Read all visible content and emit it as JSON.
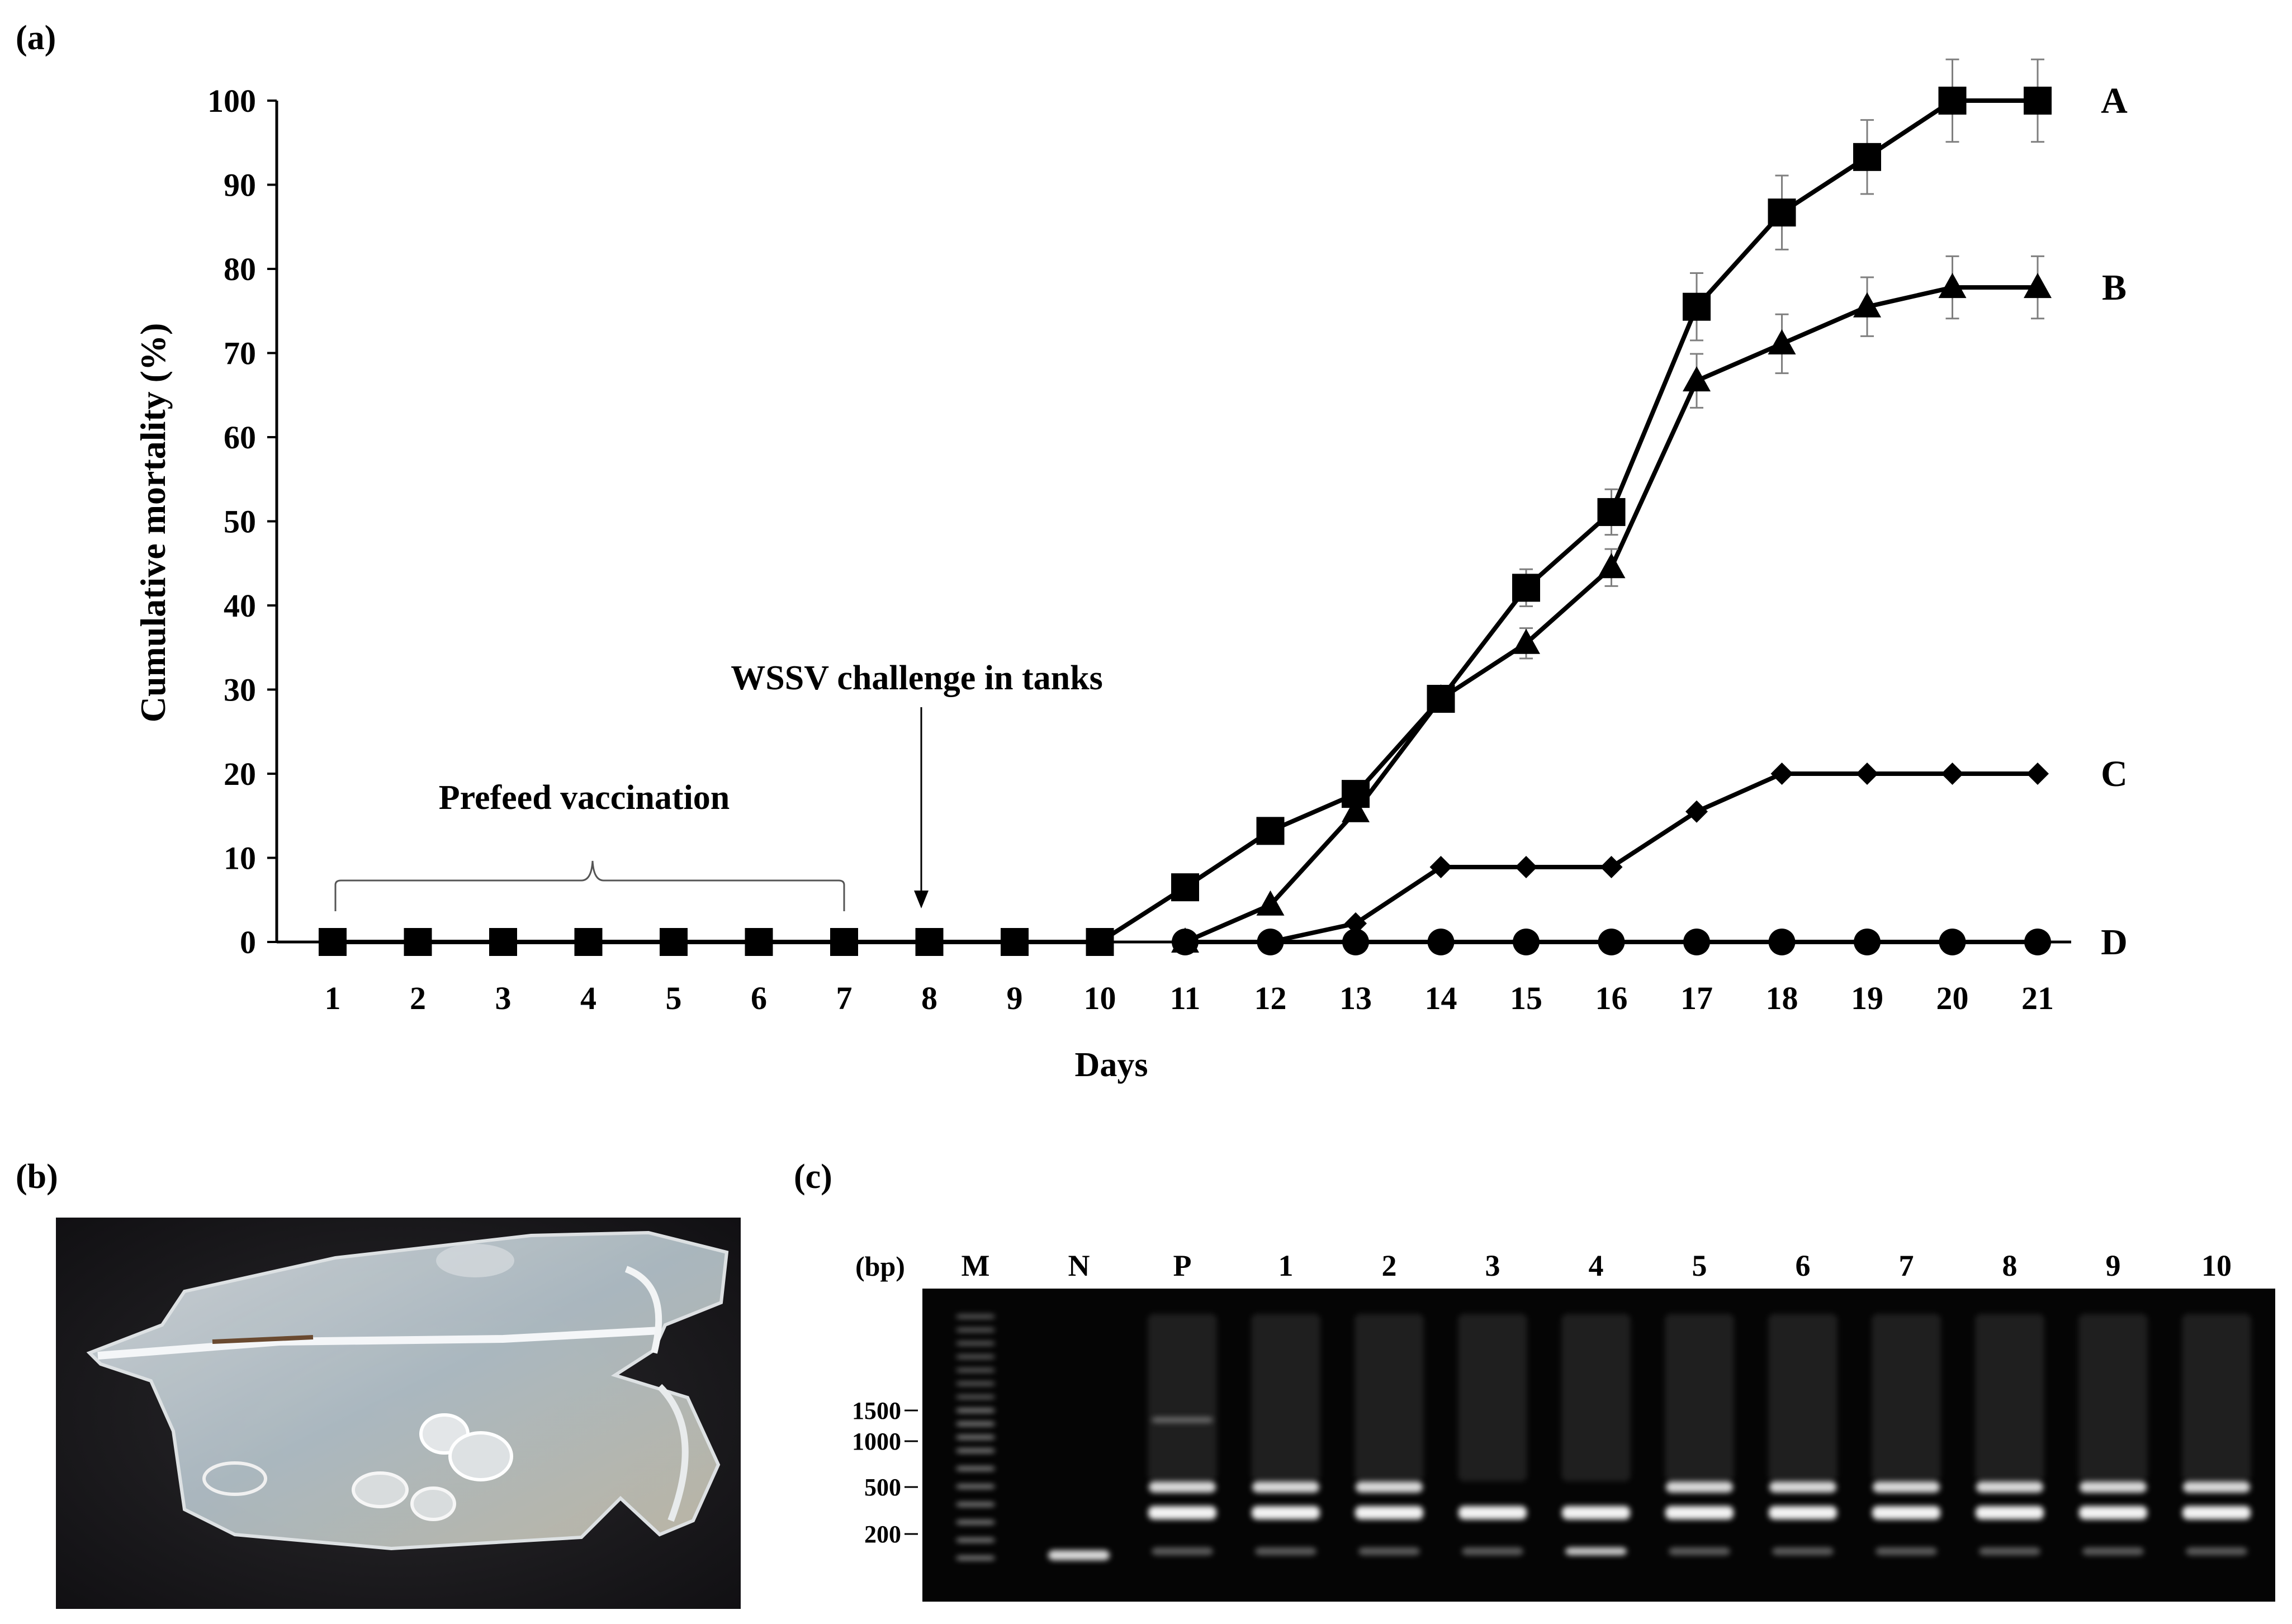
{
  "panel_labels": {
    "a": "(a)",
    "b": "(b)",
    "c": "(c)"
  },
  "chart_data": {
    "type": "line",
    "ylabel": "Cumulative mortality (%)",
    "xlabel": "Days",
    "ylim": [
      0,
      100
    ],
    "yticks": [
      0,
      10,
      20,
      30,
      40,
      50,
      60,
      70,
      80,
      90,
      100
    ],
    "x": [
      1,
      2,
      3,
      4,
      5,
      6,
      7,
      8,
      9,
      10,
      11,
      12,
      13,
      14,
      15,
      16,
      17,
      18,
      19,
      20,
      21
    ],
    "series": [
      {
        "name": "A",
        "marker": "square",
        "x": [
          1,
          2,
          3,
          4,
          5,
          6,
          7,
          8,
          9,
          10,
          11,
          12,
          13,
          14,
          15,
          16,
          17,
          18,
          19,
          20,
          21
        ],
        "values": [
          0,
          0,
          0,
          0,
          0,
          0,
          0,
          0,
          0,
          0,
          6.5,
          13.2,
          17.6,
          28.9,
          42.1,
          51.1,
          75.5,
          86.7,
          93.3,
          100,
          100
        ],
        "error": [
          0,
          0,
          0,
          0,
          0,
          0,
          0,
          0,
          0,
          0,
          0,
          0,
          0,
          0,
          2.2,
          2.7,
          4,
          4.4,
          4.4,
          4.9,
          4.9
        ]
      },
      {
        "name": "B",
        "marker": "triangle",
        "x": [
          11,
          12,
          13,
          14,
          15,
          16,
          17,
          18,
          19,
          20,
          21
        ],
        "values": [
          0,
          4.4,
          15.5,
          28.9,
          35.5,
          44.5,
          66.7,
          71.1,
          75.5,
          77.8,
          77.8
        ],
        "error": [
          0,
          0,
          0,
          0,
          1.8,
          2.2,
          3.2,
          3.5,
          3.5,
          3.7,
          3.7
        ]
      },
      {
        "name": "C",
        "marker": "diamond",
        "x": [
          12,
          13,
          14,
          15,
          16,
          17,
          18,
          19,
          20,
          21
        ],
        "values": [
          0,
          2.2,
          8.9,
          8.9,
          8.9,
          15.5,
          20,
          20,
          20,
          20
        ],
        "error": [
          0,
          0,
          0,
          0,
          0,
          0,
          0,
          0,
          0,
          0
        ]
      },
      {
        "name": "D",
        "marker": "circle",
        "x": [
          11,
          12,
          13,
          14,
          15,
          16,
          17,
          18,
          19,
          20,
          21
        ],
        "values": [
          0,
          0,
          0,
          0,
          0,
          0,
          0,
          0,
          0,
          0,
          0
        ],
        "error": [
          0,
          0,
          0,
          0,
          0,
          0,
          0,
          0,
          0,
          0,
          0
        ]
      }
    ],
    "annotations": {
      "prefeed": "Prefeed vaccination",
      "challenge": "WSSV challenge in tanks"
    }
  },
  "gel": {
    "unit_label": "(bp)",
    "lanes": [
      "M",
      "N",
      "P",
      "1",
      "2",
      "3",
      "4",
      "5",
      "6",
      "7",
      "8",
      "9",
      "10"
    ],
    "size_markers": [
      "1500",
      "1000",
      "500",
      "200"
    ]
  },
  "colors": {
    "line": "#000000",
    "error_bar": "#7f7f7f",
    "gel_background": "#050505"
  }
}
